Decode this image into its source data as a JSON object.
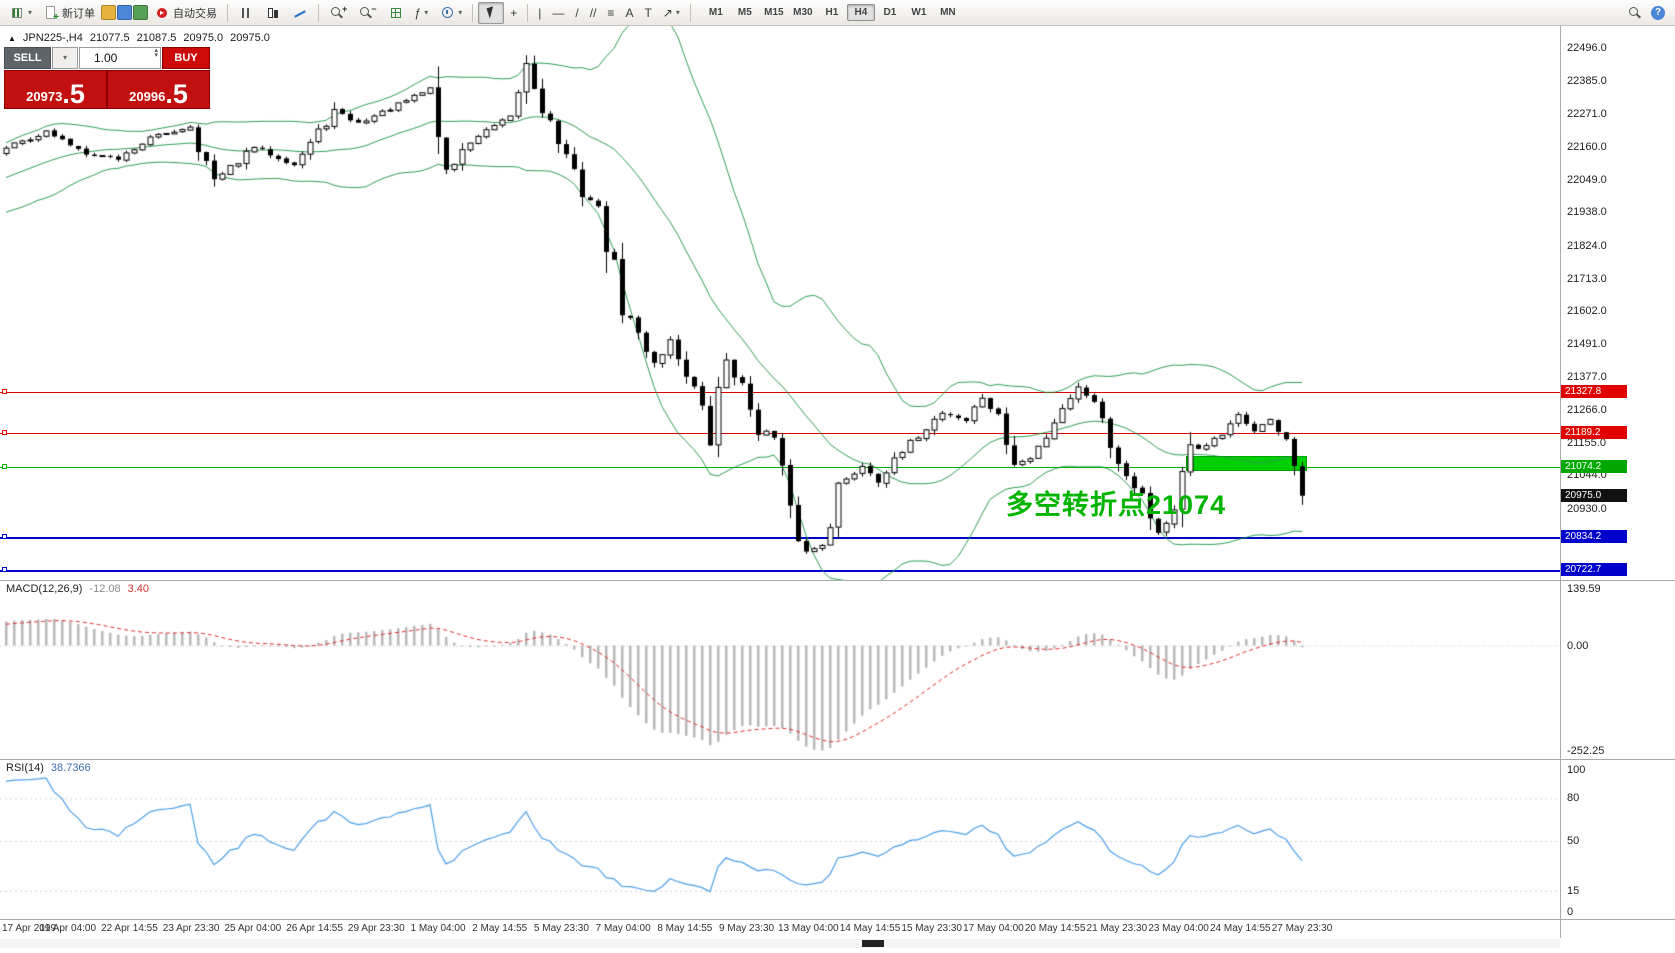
{
  "colors": {
    "buy_red": "#cc0a0a",
    "sell_gray": "#5f6469",
    "price_box_red": "#c20f0f",
    "bollinger_green": "#2f9e54",
    "candle_up": "#ffffff",
    "candle_down": "#000000",
    "line_red": "#e00000",
    "line_green": "#00b000",
    "line_blue": "#0000cd",
    "badge_red": "#e00000",
    "badge_green": "#00a800",
    "badge_blue": "#0000cd",
    "badge_black": "#111111",
    "macd_histogram": "#b8b8b8",
    "macd_signal": "#e03030",
    "rsi_line": "#4f9fe8",
    "highlight_green": "#00cf00",
    "annotation_green": "#00b400"
  },
  "icon_glyphs": {
    "caret": "▾",
    "crosshair": "+",
    "vertical_line": "|",
    "horizontal_line": "—",
    "trendline": "/",
    "channel": "//",
    "fibonacci": "≡",
    "text": "A",
    "label": "T",
    "arrows": "↗",
    "indicators": "ƒ",
    "zoom_in": "+",
    "zoom_out": "−",
    "spin_up": "▴",
    "spin_down": "▾",
    "symbol_marker": "▲",
    "help": "?"
  },
  "toolbar": {
    "new_order_label": "新订单",
    "autotrading_label": "自动交易",
    "timeframes": [
      {
        "label": "M1",
        "active": false
      },
      {
        "label": "M5",
        "active": false
      },
      {
        "label": "M15",
        "active": false
      },
      {
        "label": "M30",
        "active": false
      },
      {
        "label": "H1",
        "active": false
      },
      {
        "label": "H4",
        "active": true
      },
      {
        "label": "D1",
        "active": false
      },
      {
        "label": "W1",
        "active": false
      },
      {
        "label": "MN",
        "active": false
      }
    ]
  },
  "symbol_bar": {
    "symbol": "JPN225-,H4",
    "open": "21077.5",
    "high": "21087.5",
    "low": "20975.0",
    "close": "20975.0"
  },
  "trade_panel": {
    "sell_label": "SELL",
    "buy_label": "BUY",
    "volume": "1.00",
    "sell_price_main": "20973",
    "sell_price_pips": ".5",
    "buy_price_main": "20996",
    "buy_price_pips": ".5"
  },
  "macd_panel": {
    "name": "MACD(12,26,9)",
    "value_main": "-12.08",
    "value_signal": "3.40"
  },
  "rsi_panel": {
    "name": "RSI(14)",
    "value": "38.7366"
  },
  "annotation": {
    "text": "多空转折点21074"
  },
  "chart_data": {
    "type": "candlestick",
    "symbol": "JPN225-",
    "timeframe": "H4",
    "current_ohlc": {
      "open": 21077.5,
      "high": 21087.5,
      "low": 20975.0,
      "close": 20975.0
    },
    "current_price": 20975.0,
    "y_axis_ticks": [
      22496.0,
      22385.0,
      22271.0,
      22160.0,
      22049.0,
      21938.0,
      21824.0,
      21713.0,
      21602.0,
      21491.0,
      21377.0,
      21266.0,
      21155.0,
      21044.0,
      20930.0
    ],
    "x_labels": [
      "17 Apr 2019",
      "19 Apr 04:00",
      "22 Apr 14:55",
      "23 Apr 23:30",
      "25 Apr 04:00",
      "26 Apr 14:55",
      "29 Apr 23:30",
      "1 May 04:00",
      "2 May 14:55",
      "5 May 23:30",
      "7 May 04:00",
      "8 May 14:55",
      "9 May 23:30",
      "13 May 04:00",
      "14 May 14:55",
      "15 May 23:30",
      "17 May 04:00",
      "20 May 14:55",
      "21 May 23:30",
      "23 May 04:00",
      "24 May 14:55",
      "27 May 23:30"
    ],
    "horizontal_lines": [
      {
        "price": 21327.8,
        "label": "21327.8",
        "color": "red"
      },
      {
        "price": 21189.2,
        "label": "21189.2",
        "color": "red"
      },
      {
        "price": 21074.2,
        "label": "21074.2",
        "color": "green"
      },
      {
        "price": 20834.2,
        "label": "20834.2",
        "color": "blue"
      },
      {
        "price": 20722.7,
        "label": "20722.7",
        "color": "blue"
      }
    ],
    "highlight_zone": {
      "price_top": 21110,
      "price_bottom": 21058,
      "candle_start": 148,
      "candle_end": 162
    },
    "bollinger": {
      "period": 20,
      "deviation": 2
    },
    "macd": {
      "fast": 12,
      "slow": 26,
      "signal": 9,
      "last_main": -12.08,
      "last_signal": 3.4,
      "axis_labels": [
        "139.59",
        "0.00",
        "-252.25"
      ],
      "axis_max": 139.59,
      "axis_min": -252.25
    },
    "rsi": {
      "period": 14,
      "last": 38.7366,
      "axis_labels": [
        100,
        80,
        50,
        15,
        0
      ],
      "levels": [
        80,
        50,
        15
      ]
    },
    "price_anchors": [
      [
        0,
        22160
      ],
      [
        5,
        22210
      ],
      [
        10,
        22140
      ],
      [
        14,
        22120
      ],
      [
        18,
        22190
      ],
      [
        23,
        22230
      ],
      [
        26,
        22040
      ],
      [
        31,
        22160
      ],
      [
        36,
        22100
      ],
      [
        41,
        22280
      ],
      [
        44,
        22240
      ],
      [
        48,
        22290
      ],
      [
        51,
        22330
      ],
      [
        53,
        22360
      ],
      [
        55,
        22070
      ],
      [
        58,
        22180
      ],
      [
        61,
        22230
      ],
      [
        63,
        22260
      ],
      [
        65,
        22440
      ],
      [
        67,
        22300
      ],
      [
        70,
        22120
      ],
      [
        72,
        22010
      ],
      [
        74,
        21950
      ],
      [
        77,
        21620
      ],
      [
        79,
        21520
      ],
      [
        81,
        21430
      ],
      [
        83,
        21500
      ],
      [
        86,
        21340
      ],
      [
        88,
        21160
      ],
      [
        90,
        21450
      ],
      [
        92,
        21340
      ],
      [
        94,
        21210
      ],
      [
        96,
        21170
      ],
      [
        98,
        20890
      ],
      [
        100,
        20780
      ],
      [
        102,
        20810
      ],
      [
        104,
        21000
      ],
      [
        107,
        21080
      ],
      [
        109,
        21030
      ],
      [
        112,
        21120
      ],
      [
        114,
        21180
      ],
      [
        117,
        21260
      ],
      [
        120,
        21230
      ],
      [
        122,
        21310
      ],
      [
        124,
        21240
      ],
      [
        126,
        21080
      ],
      [
        128,
        21100
      ],
      [
        130,
        21180
      ],
      [
        132,
        21280
      ],
      [
        134,
        21340
      ],
      [
        136,
        21300
      ],
      [
        138,
        21150
      ],
      [
        140,
        21050
      ],
      [
        142,
        20980
      ],
      [
        144,
        20850
      ],
      [
        146,
        20920
      ],
      [
        148,
        21120
      ],
      [
        150,
        21150
      ],
      [
        152,
        21180
      ],
      [
        154,
        21240
      ],
      [
        156,
        21200
      ],
      [
        158,
        21230
      ],
      [
        160,
        21170
      ],
      [
        162,
        20975
      ]
    ]
  }
}
